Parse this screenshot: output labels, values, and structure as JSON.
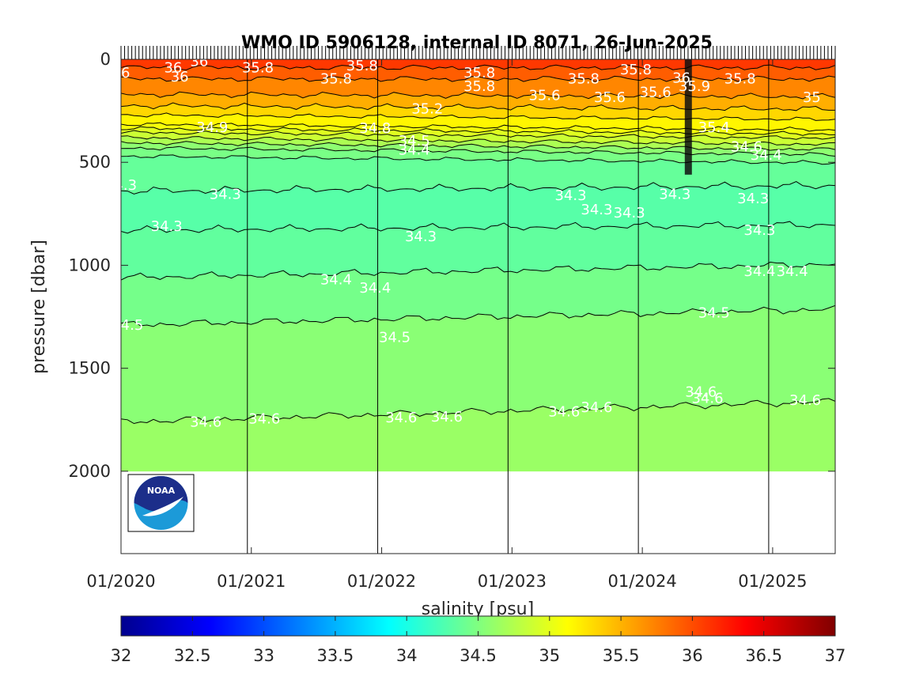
{
  "chart_data": {
    "type": "heatmap",
    "title": "WMO ID 5906128, internal ID 8071, 26-Jun-2025",
    "xlabel": "",
    "ylabel": "pressure [dbar]",
    "colorbar_label": "salinity [psu]",
    "colormap": "jet",
    "clim": [
      32,
      37
    ],
    "x_ticks": [
      "01/2020",
      "01/2021",
      "01/2022",
      "01/2023",
      "01/2024",
      "01/2025"
    ],
    "x_range_years": [
      2020.0,
      2025.48
    ],
    "y_ticks": [
      0,
      500,
      1000,
      1500,
      2000
    ],
    "ylim": [
      0,
      2400
    ],
    "y_reversed": true,
    "colorbar_ticks": [
      32,
      32.5,
      33,
      33.5,
      34,
      34.5,
      35,
      35.5,
      36,
      36.5,
      37
    ],
    "profiles_max_pressure": 2000,
    "contours": [
      {
        "level": 34.6,
        "base_pressure": 1760,
        "slope_per_year": -18
      },
      {
        "level": 34.5,
        "base_pressure": 1290,
        "slope_per_year": -14
      },
      {
        "level": 34.4,
        "base_pressure": 1060,
        "slope_per_year": -12
      },
      {
        "level": 34.3,
        "base_pressure": 830,
        "slope_per_year": -5
      },
      {
        "level": 34.3,
        "base_pressure": 640,
        "slope_per_year": -5
      },
      {
        "level": 34.4,
        "base_pressure": 470,
        "slope_per_year": 6
      },
      {
        "level": 34.5,
        "base_pressure": 430,
        "slope_per_year": 6
      },
      {
        "level": 34.6,
        "base_pressure": 405,
        "slope_per_year": 6
      },
      {
        "level": 34.8,
        "base_pressure": 380,
        "slope_per_year": 6
      },
      {
        "level": 34.9,
        "base_pressure": 355,
        "slope_per_year": 5
      },
      {
        "level": 35.0,
        "base_pressure": 335,
        "slope_per_year": 5
      },
      {
        "level": 35.1,
        "base_pressure": 315,
        "slope_per_year": 5
      },
      {
        "level": 35.2,
        "base_pressure": 270,
        "slope_per_year": 4
      },
      {
        "level": 35.4,
        "base_pressure": 225,
        "slope_per_year": 3
      },
      {
        "level": 35.6,
        "base_pressure": 170,
        "slope_per_year": 2
      },
      {
        "level": 35.8,
        "base_pressure": 95,
        "slope_per_year": 0
      },
      {
        "level": 36.0,
        "base_pressure": 40,
        "slope_per_year": 0
      }
    ],
    "contour_labels": [
      {
        "text": "36",
        "t": 2020.0,
        "p": 65
      },
      {
        "text": "36",
        "t": 2020.4,
        "p": 40
      },
      {
        "text": "36",
        "t": 2020.45,
        "p": 85
      },
      {
        "text": "36",
        "t": 2020.6,
        "p": 10
      },
      {
        "text": "35.8",
        "t": 2021.05,
        "p": 40
      },
      {
        "text": "35.8",
        "t": 2021.85,
        "p": 30
      },
      {
        "text": "35.8",
        "t": 2021.65,
        "p": 95
      },
      {
        "text": "35.8",
        "t": 2022.75,
        "p": 65
      },
      {
        "text": "35.8",
        "t": 2022.75,
        "p": 130
      },
      {
        "text": "35.8",
        "t": 2023.55,
        "p": 95
      },
      {
        "text": "35.6",
        "t": 2023.25,
        "p": 175
      },
      {
        "text": "35.6",
        "t": 2023.75,
        "p": 185
      },
      {
        "text": "35.6",
        "t": 2024.1,
        "p": 160
      },
      {
        "text": "35.8",
        "t": 2023.95,
        "p": 50
      },
      {
        "text": "35.2",
        "t": 2022.35,
        "p": 240
      },
      {
        "text": "34.9",
        "t": 2020.7,
        "p": 330
      },
      {
        "text": "34.8",
        "t": 2021.95,
        "p": 335
      },
      {
        "text": "34.5",
        "t": 2022.25,
        "p": 395
      },
      {
        "text": "34.4",
        "t": 2022.25,
        "p": 440
      },
      {
        "text": "35.8",
        "t": 2024.75,
        "p": 95
      },
      {
        "text": "35.9",
        "t": 2024.4,
        "p": 130
      },
      {
        "text": "36",
        "t": 2024.3,
        "p": 90
      },
      {
        "text": "35",
        "t": 2025.3,
        "p": 185
      },
      {
        "text": "35.4",
        "t": 2024.55,
        "p": 330
      },
      {
        "text": "34.6",
        "t": 2024.8,
        "p": 425
      },
      {
        "text": "34.4",
        "t": 2024.95,
        "p": 465
      },
      {
        "text": "34.3",
        "t": 2020.0,
        "p": 610
      },
      {
        "text": "34.3",
        "t": 2020.8,
        "p": 655
      },
      {
        "text": "34.3",
        "t": 2020.35,
        "p": 810
      },
      {
        "text": "34.3",
        "t": 2022.3,
        "p": 860
      },
      {
        "text": "34.3",
        "t": 2023.45,
        "p": 660
      },
      {
        "text": "34.3",
        "t": 2023.65,
        "p": 730
      },
      {
        "text": "34.3",
        "t": 2023.9,
        "p": 745
      },
      {
        "text": "34.3",
        "t": 2024.25,
        "p": 655
      },
      {
        "text": "34.3",
        "t": 2024.85,
        "p": 675
      },
      {
        "text": "34.3",
        "t": 2024.9,
        "p": 830
      },
      {
        "text": "34.4",
        "t": 2021.65,
        "p": 1070
      },
      {
        "text": "34.4",
        "t": 2021.95,
        "p": 1110
      },
      {
        "text": "34.4",
        "t": 2024.9,
        "p": 1030
      },
      {
        "text": "34.4",
        "t": 2025.15,
        "p": 1030
      },
      {
        "text": "34.5",
        "t": 2020.05,
        "p": 1290
      },
      {
        "text": "34.5",
        "t": 2022.1,
        "p": 1350
      },
      {
        "text": "34.5",
        "t": 2024.55,
        "p": 1230
      },
      {
        "text": "34.6",
        "t": 2020.65,
        "p": 1760
      },
      {
        "text": "34.6",
        "t": 2021.1,
        "p": 1745
      },
      {
        "text": "34.6",
        "t": 2022.15,
        "p": 1740
      },
      {
        "text": "34.6",
        "t": 2022.5,
        "p": 1735
      },
      {
        "text": "34.6",
        "t": 2023.4,
        "p": 1710
      },
      {
        "text": "34.6",
        "t": 2023.65,
        "p": 1690
      },
      {
        "text": "34.6",
        "t": 2024.5,
        "p": 1645
      },
      {
        "text": "34.6",
        "t": 2024.45,
        "p": 1615
      },
      {
        "text": "34.6",
        "t": 2025.25,
        "p": 1655
      }
    ]
  },
  "logo": {
    "name": "noaa-logo",
    "text": "NOAA",
    "colors": {
      "top": "#1c2e8a",
      "bottom": "#1c9ad8"
    }
  }
}
